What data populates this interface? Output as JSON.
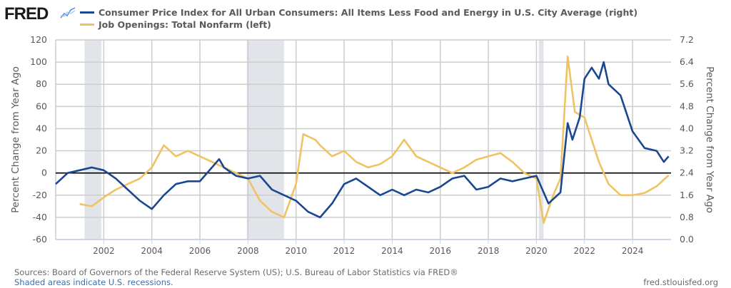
{
  "header": {
    "logo": "FRED",
    "logo_icon": "line-graph-icon"
  },
  "colors": {
    "cpi": "#1a4791",
    "jobs": "#efc363",
    "recession": "#e1e5ea",
    "grid": "#cccccc",
    "zero_line": "#000000"
  },
  "chart_data": {
    "type": "line",
    "title": "",
    "legend_placement": "top-left",
    "legend": [
      "Consumer Price Index for All Urban Consumers: All Items Less Food and Energy in U.S. City Average (right)",
      "Job Openings: Total Nonfarm (left)"
    ],
    "ylabel_left": "Percent Change from Year Ago",
    "ylabel_right": "Percent Change from Year Ago",
    "ylim_left": [
      -60,
      120
    ],
    "ylim_right": [
      0.0,
      7.2
    ],
    "yticks_left": [
      "120",
      "100",
      "80",
      "60",
      "40",
      "20",
      "0",
      "-20",
      "-40",
      "-60"
    ],
    "yticks_right": [
      "7.2",
      "6.4",
      "5.6",
      "4.8",
      "4.0",
      "3.2",
      "2.4",
      "1.6",
      "0.8",
      "0.0"
    ],
    "xlim": [
      2000.0,
      2025.6
    ],
    "xticks": [
      "2002",
      "2004",
      "2006",
      "2008",
      "2010",
      "2012",
      "2014",
      "2016",
      "2018",
      "2020",
      "2022",
      "2024"
    ],
    "grid": true,
    "zero_line_left": 0,
    "recessions": [
      [
        2001.2,
        2001.9
      ],
      [
        2007.95,
        2009.5
      ],
      [
        2020.1,
        2020.3
      ]
    ],
    "series": [
      {
        "name": "Consumer Price Index for All Urban Consumers: All Items Less Food and Energy in U.S. City Average (right)",
        "axis": "right",
        "x": [
          2000.0,
          2000.5,
          2001.0,
          2001.5,
          2002.0,
          2002.5,
          2003.0,
          2003.5,
          2004.0,
          2004.5,
          2005.0,
          2005.5,
          2006.0,
          2006.5,
          2006.8,
          2007.0,
          2007.5,
          2008.0,
          2008.5,
          2009.0,
          2009.5,
          2010.0,
          2010.5,
          2011.0,
          2011.5,
          2012.0,
          2012.5,
          2013.0,
          2013.5,
          2014.0,
          2014.5,
          2015.0,
          2015.5,
          2016.0,
          2016.5,
          2017.0,
          2017.5,
          2018.0,
          2018.5,
          2019.0,
          2019.5,
          2020.0,
          2020.5,
          2021.0,
          2021.3,
          2021.5,
          2021.8,
          2022.0,
          2022.3,
          2022.6,
          2022.8,
          2023.0,
          2023.5,
          2024.0,
          2024.5,
          2025.0,
          2025.3,
          2025.5
        ],
        "values": [
          2.0,
          2.4,
          2.5,
          2.6,
          2.5,
          2.2,
          1.8,
          1.4,
          1.1,
          1.6,
          2.0,
          2.1,
          2.1,
          2.6,
          2.9,
          2.6,
          2.3,
          2.2,
          2.3,
          1.8,
          1.6,
          1.4,
          1.0,
          0.8,
          1.3,
          2.0,
          2.2,
          1.9,
          1.6,
          1.8,
          1.6,
          1.8,
          1.7,
          1.9,
          2.2,
          2.3,
          1.8,
          1.9,
          2.2,
          2.1,
          2.2,
          2.3,
          1.3,
          1.7,
          4.2,
          3.6,
          4.4,
          5.8,
          6.2,
          5.8,
          6.4,
          5.6,
          5.2,
          3.9,
          3.3,
          3.2,
          2.8,
          3.0
        ]
      },
      {
        "name": "Job Openings: Total Nonfarm (left)",
        "axis": "left",
        "x": [
          2001.0,
          2001.5,
          2002.0,
          2002.5,
          2003.0,
          2003.5,
          2004.0,
          2004.5,
          2005.0,
          2005.5,
          2006.0,
          2006.5,
          2007.0,
          2007.5,
          2008.0,
          2008.5,
          2009.0,
          2009.5,
          2010.0,
          2010.3,
          2010.8,
          2011.0,
          2011.5,
          2012.0,
          2012.5,
          2013.0,
          2013.5,
          2014.0,
          2014.5,
          2015.0,
          2015.5,
          2016.0,
          2016.5,
          2017.0,
          2017.5,
          2018.0,
          2018.5,
          2019.0,
          2019.5,
          2020.0,
          2020.3,
          2020.7,
          2021.0,
          2021.3,
          2021.6,
          2022.0,
          2022.3,
          2022.6,
          2023.0,
          2023.5,
          2024.0,
          2024.5,
          2025.0,
          2025.5
        ],
        "values": [
          -28,
          -30,
          -22,
          -15,
          -10,
          -5,
          5,
          25,
          15,
          20,
          15,
          10,
          5,
          0,
          -5,
          -25,
          -35,
          -40,
          -10,
          35,
          30,
          25,
          15,
          20,
          10,
          5,
          8,
          15,
          30,
          15,
          10,
          5,
          0,
          5,
          12,
          15,
          18,
          10,
          0,
          -5,
          -45,
          -20,
          -5,
          105,
          55,
          50,
          30,
          10,
          -10,
          -20,
          -20,
          -18,
          -12,
          -2
        ]
      }
    ]
  },
  "footer": {
    "sources": "Sources: Board of Governors of the Federal Reserve System (US); U.S. Bureau of Labor Statistics via FRED®",
    "recession_note": "Shaded areas indicate U.S. recessions.",
    "site": "fred.stlouisfed.org"
  }
}
